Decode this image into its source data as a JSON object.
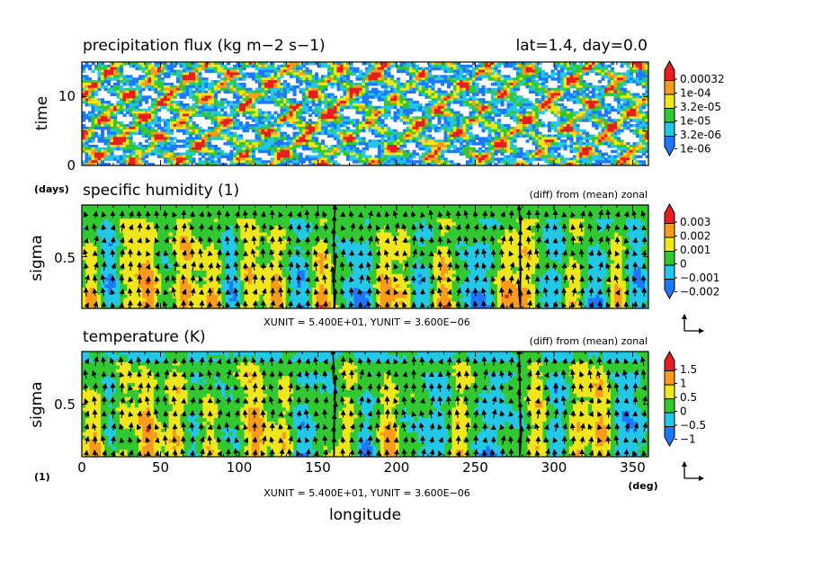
{
  "palette": {
    "levels": [
      "#1e78ff",
      "#22c8e6",
      "#32c832",
      "#f0e61e",
      "#fa9b1e",
      "#e61e1e"
    ]
  },
  "panels": [
    {
      "id": "precip",
      "title": "precipitation flux (kg m−2 s−1)",
      "right_title": "lat=1.4, day=0.0",
      "ylabel": "time",
      "yunit": "(days)",
      "yticks": [
        "0",
        "10"
      ],
      "colorbar_labels": [
        "0.00032",
        "1e-04",
        "3.2e-05",
        "1e-05",
        "3.2e-06",
        "1e-06"
      ]
    },
    {
      "id": "humidity",
      "title": "specific humidity (1)",
      "right_title": "(diff) from (mean) zonal",
      "ylabel": "sigma",
      "yticks": [
        "0.5"
      ],
      "colorbar_labels": [
        "0.003",
        "0.002",
        "0.001",
        "0",
        "−0.001",
        "−0.002"
      ],
      "vector_note": "XUNIT = 5.400E+01, YUNIT = 3.600E−06"
    },
    {
      "id": "temperature",
      "title": "temperature (K)",
      "right_title": "(diff) from (mean) zonal",
      "ylabel": "sigma",
      "yunit": "(1)",
      "yticks": [
        "0.5"
      ],
      "colorbar_labels": [
        "1.5",
        "1",
        "0.5",
        "0",
        "−0.5",
        "−1"
      ],
      "vector_note": "XUNIT = 5.400E+01, YUNIT = 3.600E−06"
    }
  ],
  "xaxis": {
    "label": "longitude",
    "unit": "(deg)",
    "ticks": [
      "0",
      "50",
      "100",
      "150",
      "200",
      "250",
      "300",
      "350"
    ]
  },
  "chart_data": [
    {
      "type": "heatmap",
      "title": "precipitation flux (kg m−2 s−1)",
      "subtitle": "lat=1.4, day=0.0",
      "xlabel": "longitude",
      "ylabel": "time",
      "xlim": [
        0,
        360
      ],
      "ylim": [
        0,
        15
      ],
      "scale": "log",
      "levels": [
        1e-06,
        3.2e-06,
        1e-05,
        3.2e-05,
        0.0001,
        0.00032
      ],
      "pattern": "eastward-propagating precipitation streaks",
      "streak_slope_deg_per_day": 5,
      "streak_origins_lon": [
        5,
        30,
        60,
        95,
        120,
        150,
        185,
        215,
        250,
        280,
        310,
        340
      ],
      "streak_strength": [
        0.9,
        0.7,
        0.85,
        0.75,
        0.95,
        0.6,
        0.8,
        0.7,
        0.9,
        0.65,
        0.85,
        0.75
      ]
    },
    {
      "type": "heatmap",
      "title": "specific humidity (1)",
      "subtitle": "(diff) from (mean) zonal",
      "xlabel": "longitude",
      "ylabel": "sigma",
      "xlim": [
        0,
        360
      ],
      "ylim": [
        0.08,
        0.92
      ],
      "levels": [
        -0.002,
        -0.001,
        0,
        0.001,
        0.002,
        0.003
      ],
      "positive_anomaly_lons": [
        5,
        28,
        42,
        65,
        85,
        105,
        125,
        152,
        192,
        205,
        230,
        270,
        282,
        312,
        340
      ],
      "negative_anomaly_lons": [
        20,
        95,
        140,
        180,
        215,
        255,
        300,
        330,
        355
      ],
      "vectors": {
        "xunit": 54.0,
        "yunit": 3.6e-06,
        "upward_peak_lons": [
          160,
          278
        ]
      }
    },
    {
      "type": "heatmap",
      "title": "temperature (K)",
      "subtitle": "(diff) from (mean) zonal",
      "xlabel": "longitude",
      "ylabel": "sigma",
      "xlim": [
        0,
        360
      ],
      "ylim": [
        0.08,
        0.92
      ],
      "levels": [
        -1,
        -0.5,
        0,
        0.5,
        1,
        1.5
      ],
      "warm_anomaly_lons": [
        10,
        25,
        42,
        60,
        80,
        110,
        130,
        170,
        195,
        240,
        290,
        315,
        330
      ],
      "cold_anomaly_lons": [
        20,
        75,
        140,
        180,
        225,
        260,
        300,
        345
      ],
      "vectors": {
        "xunit": 54.0,
        "yunit": 3.6e-06,
        "upward_peak_lons": [
          160,
          278
        ]
      }
    }
  ]
}
